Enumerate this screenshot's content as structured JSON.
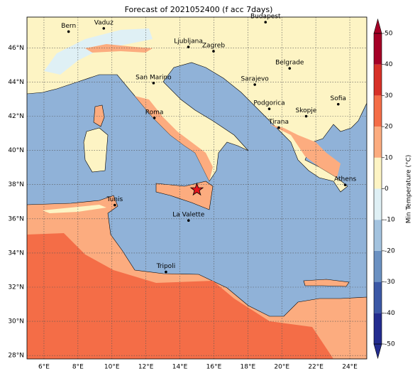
{
  "map": {
    "title": "Forecast of 2021052400 (f acc 7days)",
    "xlim": [
      5,
      25
    ],
    "ylim": [
      27.8,
      47.8
    ],
    "lon_ticks": [
      {
        "value": 6,
        "label": "6°E"
      },
      {
        "value": 8,
        "label": "8°E"
      },
      {
        "value": 10,
        "label": "10°E"
      },
      {
        "value": 12,
        "label": "12°E"
      },
      {
        "value": 14,
        "label": "14°E"
      },
      {
        "value": 16,
        "label": "16°E"
      },
      {
        "value": 18,
        "label": "18°E"
      },
      {
        "value": 20,
        "label": "20°E"
      },
      {
        "value": 22,
        "label": "22°E"
      },
      {
        "value": 24,
        "label": "24°E"
      }
    ],
    "lat_ticks": [
      {
        "value": 28,
        "label": "28°N"
      },
      {
        "value": 30,
        "label": "30°N"
      },
      {
        "value": 32,
        "label": "32°N"
      },
      {
        "value": 34,
        "label": "34°N"
      },
      {
        "value": 36,
        "label": "36°N"
      },
      {
        "value": 38,
        "label": "38°N"
      },
      {
        "value": 40,
        "label": "40°N"
      },
      {
        "value": 42,
        "label": "42°N"
      },
      {
        "value": 44,
        "label": "44°N"
      },
      {
        "value": 46,
        "label": "46°N"
      }
    ],
    "cities": [
      {
        "name": "Bern",
        "lon": 7.45,
        "lat": 46.95
      },
      {
        "name": "Vaduz",
        "lon": 9.52,
        "lat": 47.14
      },
      {
        "name": "Budapest",
        "lon": 19.04,
        "lat": 47.5
      },
      {
        "name": "Ljubljana",
        "lon": 14.5,
        "lat": 46.05
      },
      {
        "name": "Zagreb",
        "lon": 15.98,
        "lat": 45.8
      },
      {
        "name": "Belgrade",
        "lon": 20.46,
        "lat": 44.8
      },
      {
        "name": "San Marino",
        "lon": 12.45,
        "lat": 43.94
      },
      {
        "name": "Sarajevo",
        "lon": 18.41,
        "lat": 43.85
      },
      {
        "name": "Sofia",
        "lon": 23.32,
        "lat": 42.7
      },
      {
        "name": "Roma",
        "lon": 12.5,
        "lat": 41.9
      },
      {
        "name": "Podgorica",
        "lon": 19.26,
        "lat": 42.43
      },
      {
        "name": "Skopje",
        "lon": 21.43,
        "lat": 42.0
      },
      {
        "name": "Tirana",
        "lon": 19.82,
        "lat": 41.33
      },
      {
        "name": "Athens",
        "lon": 23.73,
        "lat": 37.98
      },
      {
        "name": "Tunis",
        "lon": 10.17,
        "lat": 36.8
      },
      {
        "name": "La Valette",
        "lon": 14.51,
        "lat": 35.9
      },
      {
        "name": "Tripoli",
        "lon": 13.18,
        "lat": 32.89
      }
    ],
    "event_marker": {
      "lon": 15.0,
      "lat": 37.7
    },
    "colorbar": {
      "label": "Min Temperature (°C)",
      "lim": [
        -50,
        50
      ],
      "ticks": [
        -50,
        -40,
        -30,
        -20,
        -10,
        0,
        10,
        20,
        30,
        40,
        50
      ],
      "colors": [
        "#232c8f",
        "#3b58a6",
        "#6b91c2",
        "#a3c3df",
        "#dff0f5",
        "#fdf4c4",
        "#fcac7f",
        "#f46d47",
        "#d73027",
        "#a50026"
      ]
    }
  }
}
